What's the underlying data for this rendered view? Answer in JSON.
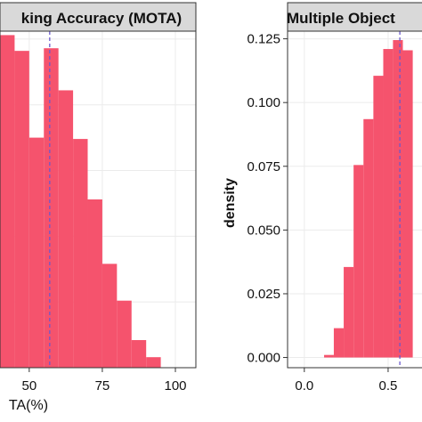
{
  "chart_data": [
    {
      "type": "bar",
      "title": "king Accuracy (MOTA)",
      "xlabel": "TA(%)",
      "ylabel": "",
      "xlim": [
        40,
        107
      ],
      "ylim": [
        0,
        0.128
      ],
      "x_ticks": [
        "50",
        "75",
        "100"
      ],
      "x_tick_values": [
        50,
        75,
        100
      ],
      "bin_width": 5,
      "bins": [
        {
          "x0": 40,
          "x1": 45,
          "value": 0.1265
        },
        {
          "x0": 45,
          "x1": 50,
          "value": 0.1205
        },
        {
          "x0": 50,
          "x1": 55,
          "value": 0.0875
        },
        {
          "x0": 55,
          "x1": 60,
          "value": 0.1215
        },
        {
          "x0": 60,
          "x1": 65,
          "value": 0.1055
        },
        {
          "x0": 65,
          "x1": 70,
          "value": 0.087
        },
        {
          "x0": 70,
          "x1": 75,
          "value": 0.064
        },
        {
          "x0": 75,
          "x1": 80,
          "value": 0.0395
        },
        {
          "x0": 80,
          "x1": 85,
          "value": 0.0255
        },
        {
          "x0": 85,
          "x1": 90,
          "value": 0.0105
        },
        {
          "x0": 90,
          "x1": 95,
          "value": 0.004
        }
      ],
      "mean_line": 57,
      "grid": true,
      "bar_color": "#F5536D",
      "mean_line_color": "#6A5ACD"
    },
    {
      "type": "bar",
      "title": "Multiple Object",
      "xlabel": "",
      "ylabel": "density",
      "xlim": [
        -0.1,
        0.75
      ],
      "ylim": [
        -0.004,
        0.128
      ],
      "x_ticks": [
        "0.0",
        "0.5"
      ],
      "x_tick_values": [
        0.0,
        0.5
      ],
      "y_ticks": [
        "0.000",
        "0.025",
        "0.050",
        "0.075",
        "0.100",
        "0.125"
      ],
      "y_tick_values": [
        0.0,
        0.025,
        0.05,
        0.075,
        0.1,
        0.125
      ],
      "bin_width": 0.0588,
      "bins": [
        {
          "x0": 0.118,
          "x1": 0.176,
          "value": 0.001
        },
        {
          "x0": 0.176,
          "x1": 0.235,
          "value": 0.0115
        },
        {
          "x0": 0.235,
          "x1": 0.294,
          "value": 0.0355
        },
        {
          "x0": 0.294,
          "x1": 0.353,
          "value": 0.0755
        },
        {
          "x0": 0.353,
          "x1": 0.412,
          "value": 0.0935
        },
        {
          "x0": 0.412,
          "x1": 0.471,
          "value": 0.1105
        },
        {
          "x0": 0.471,
          "x1": 0.529,
          "value": 0.121
        },
        {
          "x0": 0.529,
          "x1": 0.588,
          "value": 0.1245
        },
        {
          "x0": 0.588,
          "x1": 0.647,
          "value": 0.1205
        }
      ],
      "mean_line": 0.57,
      "grid": true,
      "bar_color": "#F5536D",
      "mean_line_color": "#6A5ACD"
    }
  ]
}
